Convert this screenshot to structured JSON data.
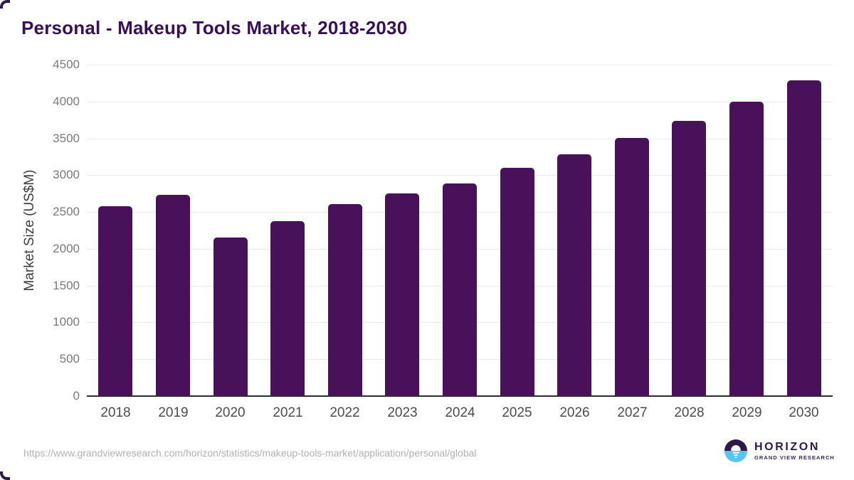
{
  "title": "Personal - Makeup Tools Market, 2018-2030",
  "source_url": "https://www.grandviewresearch.com/horizon/statistics/makeup-tools-market/application/personal/global",
  "logo": {
    "name": "HORIZON",
    "subtitle": "GRAND VIEW RESEARCH"
  },
  "colors": {
    "bar": "#491159",
    "title": "#3b0f55",
    "grid": "#e9e9e9",
    "axis": "#2d2d2d",
    "y_tick_text": "#7a7a7a",
    "x_tick_text": "#4c4c4c",
    "url_text": "#b1b1b1",
    "logo_purple": "#2e1a47",
    "logo_blue": "#56c5f0"
  },
  "chart_data": {
    "type": "bar",
    "title": "Personal - Makeup Tools Market, 2018-2030",
    "categories": [
      "2018",
      "2019",
      "2020",
      "2021",
      "2022",
      "2023",
      "2024",
      "2025",
      "2026",
      "2027",
      "2028",
      "2029",
      "2030"
    ],
    "values": [
      2580,
      2735,
      2150,
      2375,
      2610,
      2750,
      2885,
      3095,
      3280,
      3510,
      3740,
      4000,
      4290
    ],
    "xlabel": "",
    "ylabel": "Market Size (US$M)",
    "ylim": [
      0,
      4500
    ],
    "ytick_step": 500,
    "grid": true,
    "legend": false,
    "bar_color": "#491159"
  }
}
